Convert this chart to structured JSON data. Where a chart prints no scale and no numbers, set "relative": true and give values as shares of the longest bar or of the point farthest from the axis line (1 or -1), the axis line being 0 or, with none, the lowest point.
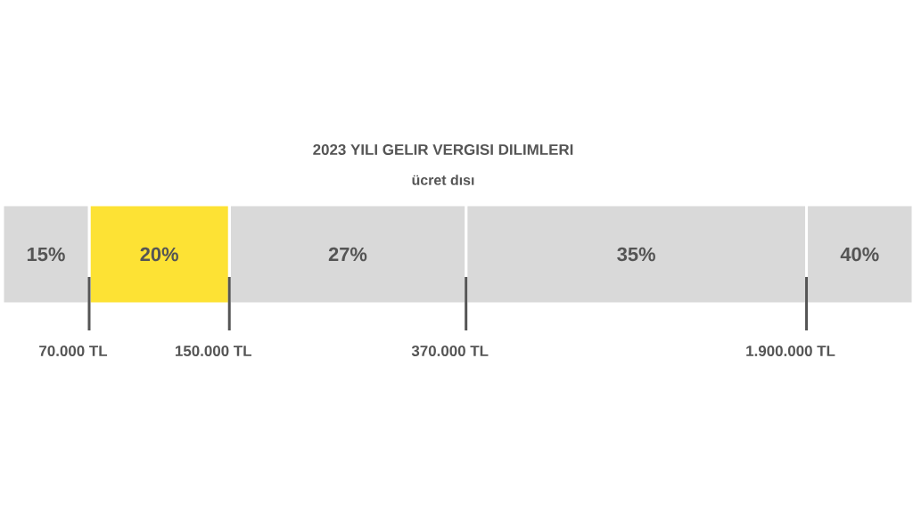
{
  "chart_data": {
    "type": "bar",
    "orientation": "horizontal",
    "stacked": true,
    "relative": true,
    "title": "2023 YILI GELIR VERGISI DILIMLERI",
    "subtitle": "ücret dısı",
    "categories": [
      null
    ],
    "series": [
      {
        "name": "15%",
        "color": "#d9d9d9",
        "values": [
          0.095
        ]
      },
      {
        "name": "20%",
        "color": "#fde234",
        "values": [
          0.154
        ]
      },
      {
        "name": "27%",
        "color": "#d9d9d9",
        "values": [
          0.26
        ]
      },
      {
        "name": "35%",
        "color": "#d9d9d9",
        "values": [
          0.374
        ]
      },
      {
        "name": "40%",
        "color": "#d9d9d9",
        "values": [
          0.117
        ]
      }
    ],
    "annotations": [
      "70.000 TL",
      "150.000 TL",
      "370.000 TL",
      "1.900.000 TL"
    ]
  }
}
